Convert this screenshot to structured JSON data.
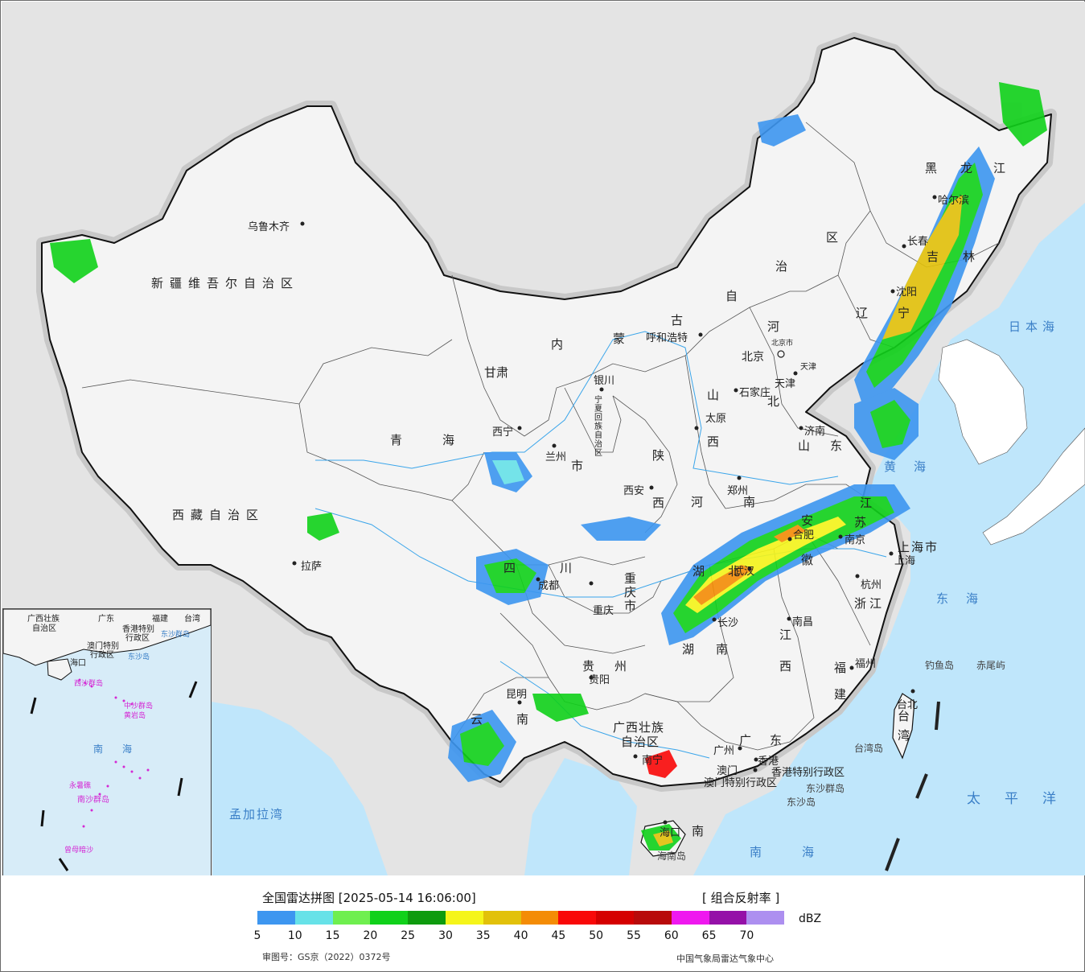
{
  "legend": {
    "title": "全国雷达拼图 [2025-05-14 16:06:00]",
    "product": "[ 组合反射率 ]",
    "unit": "dBZ",
    "approval": "审图号：GS京（2022）0372号",
    "producer": "中国气象局雷达气象中心",
    "scale": [
      {
        "value": "5",
        "color": "#3d96f0"
      },
      {
        "value": "10",
        "color": "#67e2e8"
      },
      {
        "value": "15",
        "color": "#6fef4f"
      },
      {
        "value": "20",
        "color": "#10d11a"
      },
      {
        "value": "25",
        "color": "#0e9b0e"
      },
      {
        "value": "30",
        "color": "#f5f51a"
      },
      {
        "value": "35",
        "color": "#e2c10a"
      },
      {
        "value": "40",
        "color": "#f48c06"
      },
      {
        "value": "45",
        "color": "#f90808"
      },
      {
        "value": "50",
        "color": "#d50000"
      },
      {
        "value": "55",
        "color": "#b80a0a"
      },
      {
        "value": "60",
        "color": "#ef18ef"
      },
      {
        "value": "65",
        "color": "#9511a8"
      },
      {
        "value": "70",
        "color": "#ad8ff0"
      }
    ]
  },
  "provinces": {
    "xinjiang": "新疆维吾尔自治区",
    "xizang": "西藏自治区",
    "qinghai": "青海",
    "gansu": "甘肃",
    "neimenggu_nei": "内",
    "neimenggu_meng": "蒙",
    "neimenggu_gu": "古",
    "neimenggu_zi": "自",
    "neimenggu_zhi": "治",
    "neimenggu_qu": "区",
    "heilongjiang_hei": "黑",
    "heilongjiang_long": "龙",
    "heilongjiang_jiang": "江",
    "jilin_ji": "吉",
    "jilin_lin": "林",
    "liaoning_liao": "辽",
    "liaoning_ning": "宁",
    "hebei_he": "河",
    "hebei_bei": "北",
    "shanxi_shan": "山",
    "shanxi_xi": "西",
    "shaanxi_shan": "陕",
    "shaanxi_xi": "西",
    "ningxia": "宁夏回族自治区",
    "shandong_shan": "山",
    "shandong_dong": "东",
    "henan_he": "河",
    "henan_nan": "南",
    "jiangsu_jiang": "江",
    "jiangsu_su": "苏",
    "anhui_an": "安",
    "anhui_hui": "徽",
    "shanghai": "上海市",
    "zhejiang": "浙江",
    "sichuan_si": "四",
    "sichuan_chuan": "川",
    "chongqing_chong": "重",
    "chongqing_qing": "庆",
    "chongqing_shi": "市",
    "hubei_hu": "湖",
    "hubei_bei": "北",
    "hunan_hu": "湖",
    "hunan_nan": "南",
    "jiangxi_jiang": "江",
    "jiangxi_xi": "西",
    "fujian_fu": "福",
    "fujian_jian": "建",
    "guizhou_gui": "贵",
    "guizhou_zhou": "州",
    "yunnan_yun": "云",
    "yunnan_nan": "南",
    "guangxi_1": "广西壮族",
    "guangxi_2": "自治区",
    "guangdong_guang": "广",
    "guangdong_dong": "东",
    "hongkong": "香港特别行政区",
    "macau": "澳门特别行政区",
    "hainan": "南",
    "taiwan_tai": "台",
    "taiwan_wan": "湾",
    "gansu_shi": "市"
  },
  "cities": {
    "urumqi": "乌鲁木齐",
    "lhasa": "拉萨",
    "xining": "西宁",
    "lanzhou": "兰州",
    "yinchuan": "银川",
    "hohhot": "呼和浩特",
    "beijing": "北京",
    "beijingshi": "北京市",
    "tianjin": "天津",
    "tianjinshi": "天津",
    "shijiazhuang": "石家庄",
    "taiyuan": "太原",
    "xian": "西安",
    "zhengzhou": "郑州",
    "jinan": "济南",
    "harbin": "哈尔滨",
    "changchun": "长春",
    "shenyang": "沈阳",
    "nanjing": "南京",
    "hefei": "合肥",
    "shanghai": "上海",
    "hangzhou": "杭州",
    "wuhan": "武汉",
    "changsha": "长沙",
    "nanchang": "南昌",
    "fuzhou": "福州",
    "chengdu": "成都",
    "chongqing": "重庆",
    "guiyang": "贵阳",
    "kunming": "昆明",
    "nanning": "南宁",
    "guangzhou": "广州",
    "macau": "澳门",
    "hongkong": "香港",
    "haikou": "海口",
    "taibei": "台北"
  },
  "seas": {
    "japan": "日本海",
    "yellow": "黄海",
    "east": "东海",
    "pacific": "太平洋",
    "south": "南海",
    "bengal": "孟加拉湾"
  },
  "islands": {
    "diaoyu": "钓鱼岛",
    "chiwei": "赤尾屿",
    "dongsha1": "东沙群岛",
    "dongsha2": "东沙岛",
    "taiwan_island": "台湾岛",
    "hainan_island": "海南岛"
  },
  "inset": {
    "guangxi": "广西壮族",
    "guangxi2": "自治区",
    "guangdong": "广东",
    "fujian": "福建",
    "taiwan": "台湾",
    "hongkong": "香港特别",
    "hongkong2": "行政区",
    "macau": "澳门特别",
    "macau2": "行政区",
    "dongsha": "东沙群岛",
    "dongsha2": "东沙岛",
    "haikou": "海口",
    "xisha": "西沙群岛",
    "huangyan": "黄岩岛",
    "zhongsha": "中沙群岛",
    "nanhai": "南　　海",
    "yongshu": "永暑礁",
    "nansha": "南沙群岛",
    "zengmu": "曾母暗沙"
  }
}
